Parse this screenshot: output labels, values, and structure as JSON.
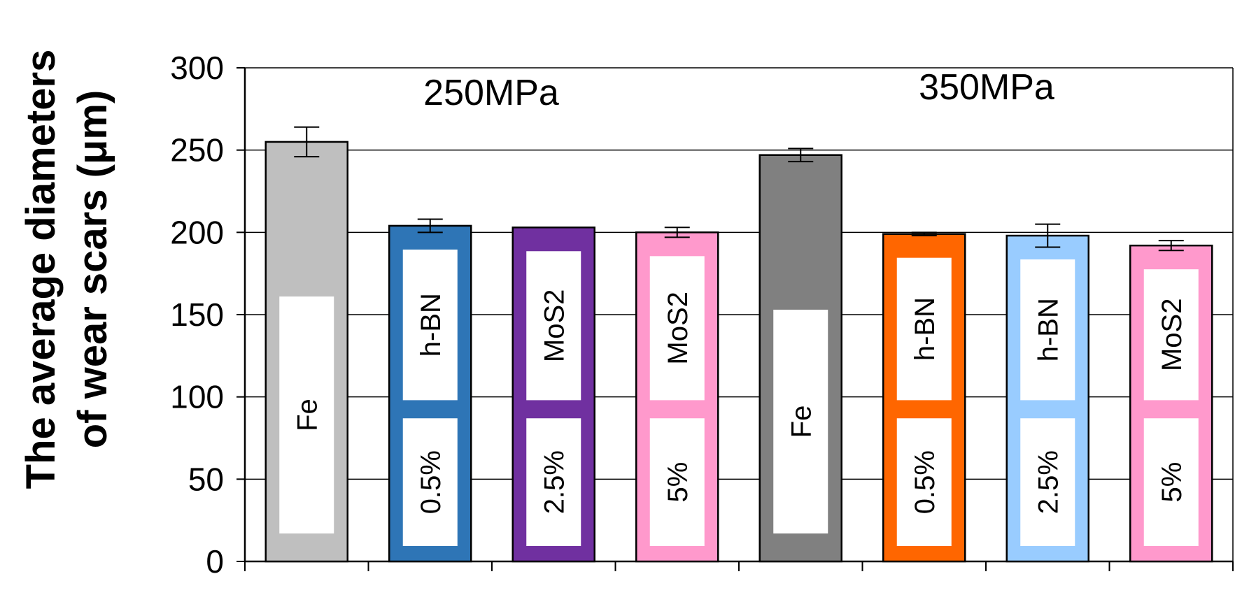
{
  "chart_data": {
    "type": "bar",
    "ylabel_line1": "The average diameters",
    "ylabel_line2": "of wear scars (μm)",
    "ylim": [
      0,
      300
    ],
    "yticks": [
      0,
      50,
      100,
      150,
      200,
      250,
      300
    ],
    "grid": true,
    "group_labels": [
      "250MPa",
      "350MPa"
    ],
    "bars": [
      {
        "group": "250MPa",
        "label_top": "",
        "label_bottom": "Fe",
        "value": 255,
        "error": 9,
        "color": "#BFBFBF"
      },
      {
        "group": "250MPa",
        "label_top": "h-BN",
        "label_bottom": "0.5%",
        "value": 204,
        "error": 4,
        "color": "#2E75B6"
      },
      {
        "group": "250MPa",
        "label_top": "MoS2",
        "label_bottom": "2.5%",
        "value": 203,
        "error": 0,
        "color": "#7030A0"
      },
      {
        "group": "250MPa",
        "label_top": "MoS2",
        "label_bottom": "5%",
        "value": 200,
        "error": 3,
        "color": "#FF99CC"
      },
      {
        "group": "350MPa",
        "label_top": "",
        "label_bottom": "Fe",
        "value": 247,
        "error": 4,
        "color": "#808080"
      },
      {
        "group": "350MPa",
        "label_top": "h-BN",
        "label_bottom": "0.5%",
        "value": 199,
        "error": 1,
        "color": "#FF6600"
      },
      {
        "group": "350MPa",
        "label_top": "h-BN",
        "label_bottom": "2.5%",
        "value": 198,
        "error": 7,
        "color": "#99CCFF"
      },
      {
        "group": "350MPa",
        "label_top": "MoS2",
        "label_bottom": "5%",
        "value": 192,
        "error": 3,
        "color": "#FF99CC"
      }
    ]
  }
}
